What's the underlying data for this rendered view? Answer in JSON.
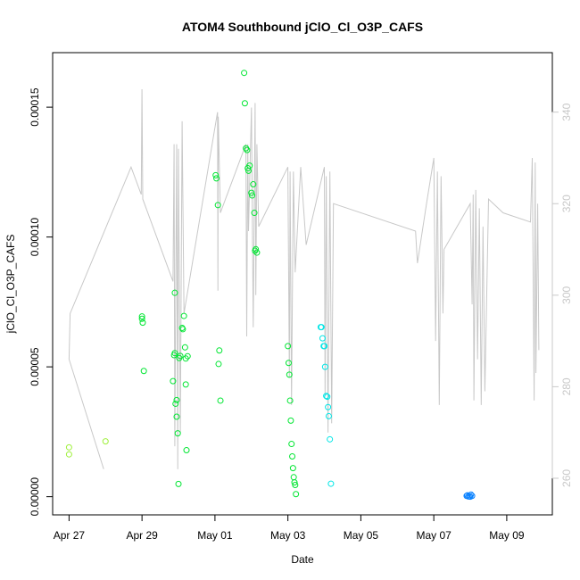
{
  "chart_data": {
    "type": "scatter",
    "title": "ATOM4 Southbound jClO_Cl_O3P_CAFS",
    "xlabel": "Date",
    "ylabel": "jClO_Cl_O3P_CAFS",
    "x_ticks": [
      "Apr 27",
      "Apr 29",
      "May 01",
      "May 03",
      "May 05",
      "May 07",
      "May 09"
    ],
    "x_tick_days": [
      0,
      2,
      4,
      6,
      8,
      10,
      12
    ],
    "xlim_days": [
      -0.45,
      13.25
    ],
    "y_ticks": [
      "0.00000",
      "0.00005",
      "0.00010",
      "0.00015"
    ],
    "y_tick_values": [
      0,
      5e-05,
      0.0001,
      0.00015
    ],
    "ylim": [
      -7e-06,
      0.000171
    ],
    "y2_ticks": [
      "260",
      "280",
      "300",
      "320",
      "340"
    ],
    "y2_tick_values": [
      260,
      280,
      300,
      320,
      340
    ],
    "y2lim": [
      252,
      353
    ],
    "colors": {
      "points_start": "#9ef03a",
      "points_mid": "#00e632",
      "points_cyan": "#00e6e6",
      "points_end": "#0a82ff",
      "line": "#c8c8c8"
    },
    "series": [
      {
        "type": "points",
        "x": [
          0.0,
          0.0,
          1.0,
          2.0,
          2.0,
          2.02,
          2.05,
          2.85,
          2.88,
          2.9,
          2.9,
          2.92,
          2.95,
          2.95,
          2.98,
          3.0,
          3.02,
          3.05,
          3.1,
          3.12,
          3.15,
          3.18,
          3.2,
          3.2,
          3.22,
          3.25,
          4.02,
          4.04,
          4.08,
          4.1,
          4.12,
          4.15,
          4.8,
          4.82,
          4.85,
          4.88,
          4.9,
          4.92,
          4.95,
          5.0,
          5.02,
          5.05,
          5.08,
          5.1,
          5.12,
          5.15,
          6.0,
          6.02,
          6.04,
          6.06,
          6.08,
          6.1,
          6.12,
          6.14,
          6.16,
          6.18,
          6.2,
          6.22,
          6.9,
          6.92,
          6.95,
          6.98,
          7.0,
          7.02,
          7.05,
          7.08,
          7.1,
          7.12,
          7.15,
          7.18,
          10.9,
          10.92,
          10.95,
          10.98,
          11.0,
          11.02,
          11.05
        ],
        "y": [
          1.9e-05,
          1.63e-05,
          2.13e-05,
          6.94e-05,
          6.85e-05,
          6.7e-05,
          4.84e-05,
          4.45e-05,
          5.45e-05,
          5.53e-05,
          7.85e-05,
          3.58e-05,
          3.72e-05,
          3.08e-05,
          2.44e-05,
          4.9e-06,
          5.34e-05,
          5.42e-05,
          6.5e-05,
          6.45e-05,
          6.96e-05,
          5.75e-05,
          5.32e-05,
          4.32e-05,
          1.79e-05,
          5.41e-05,
          0.0001238,
          0.0001226,
          0.0001123,
          5.11e-05,
          5.63e-05,
          3.7e-05,
          0.0001632,
          0.0001515,
          0.0001342,
          0.0001335,
          0.0001265,
          0.0001255,
          0.0001275,
          0.000117,
          0.000116,
          0.0001203,
          0.0001093,
          9.47e-05,
          9.53e-05,
          9.4e-05,
          5.8e-05,
          5.15e-05,
          4.7e-05,
          3.7e-05,
          2.93e-05,
          2.03e-05,
          1.55e-05,
          1.1e-05,
          7.5e-06,
          5.5e-06,
          4.5e-06,
          1e-06,
          6.53e-05,
          6.53e-05,
          6.1e-05,
          5.8e-05,
          5.8e-05,
          5e-05,
          3.88e-05,
          3.85e-05,
          3.45e-05,
          3.1e-05,
          2.21e-05,
          5e-06,
          3e-07,
          5e-07,
          1e-07,
          2e-07,
          0.0,
          8e-07,
          3e-07
        ]
      }
    ]
  }
}
